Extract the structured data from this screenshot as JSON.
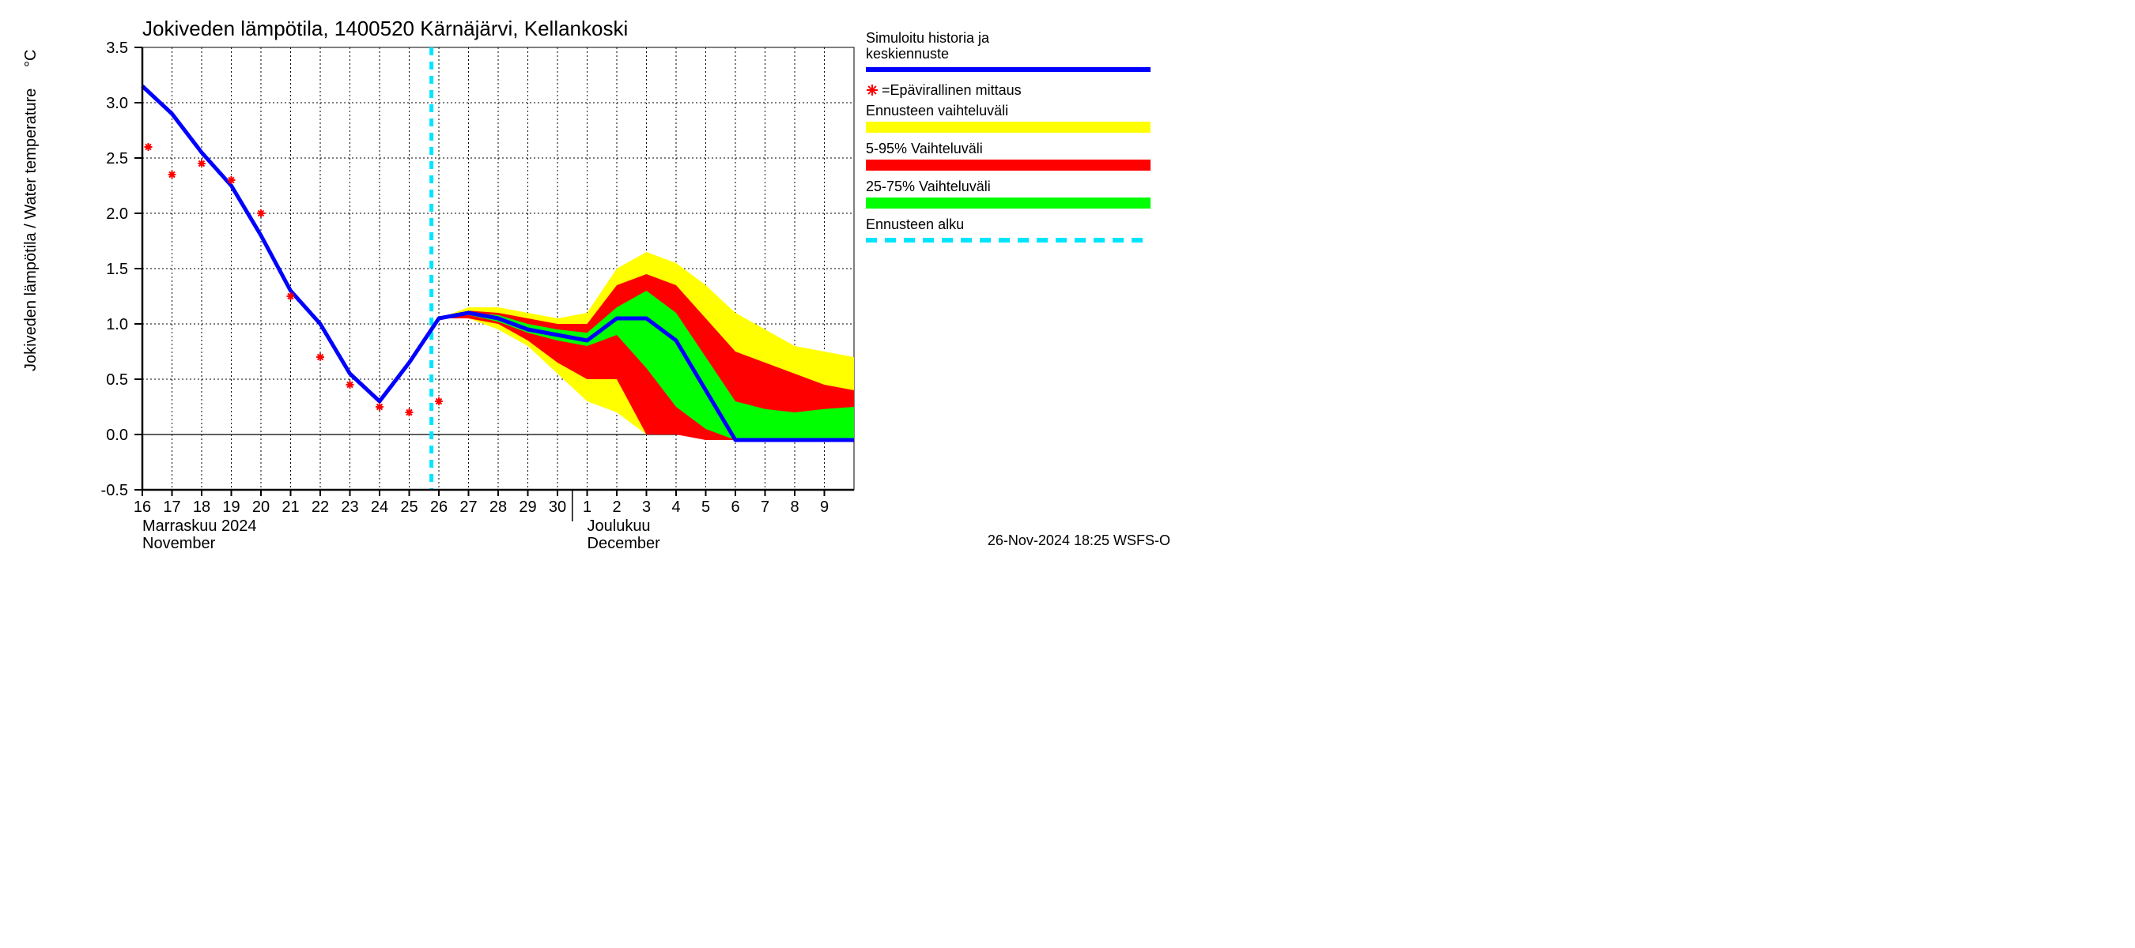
{
  "chart": {
    "type": "line-with-bands",
    "title": "Jokiveden lämpötila, 1400520 Kärnäjärvi, Kellankoski",
    "y_axis_label_fi": "Jokiveden lämpötila / Water temperature",
    "y_axis_unit": "°C",
    "footer": "26-Nov-2024 18:25 WSFS-O",
    "background_color": "#ffffff",
    "grid_color": "#000000",
    "grid_dash": "2,3",
    "axis_color": "#000000",
    "title_fontsize": 26,
    "label_fontsize": 20,
    "tick_fontsize": 20,
    "x": {
      "ticks": [
        "16",
        "17",
        "18",
        "19",
        "20",
        "21",
        "22",
        "23",
        "24",
        "25",
        "26",
        "27",
        "28",
        "29",
        "30",
        "1",
        "2",
        "3",
        "4",
        "5",
        "6",
        "7",
        "8",
        "9"
      ],
      "month_group_1": {
        "line1": "Marraskuu 2024",
        "line2": "November",
        "start_idx": 0
      },
      "month_group_2": {
        "line1": "Joulukuu",
        "line2": "December",
        "start_idx": 15
      },
      "forecast_start_idx": 9.75,
      "month_boundary_idx": 14.5
    },
    "y": {
      "min": -0.5,
      "max": 3.5,
      "tick_step": 0.5,
      "ticks": [
        -0.5,
        0.0,
        0.5,
        1.0,
        1.5,
        2.0,
        2.5,
        3.0,
        3.5
      ]
    },
    "series": {
      "sim_line": {
        "color": "#0000ff",
        "width": 5,
        "x": [
          0,
          1,
          2,
          3,
          4,
          5,
          6,
          7,
          8,
          9,
          10,
          11,
          12,
          13,
          14,
          15,
          16,
          17,
          18,
          19,
          20,
          21,
          22,
          23,
          24
        ],
        "y": [
          3.15,
          2.9,
          2.55,
          2.25,
          1.8,
          1.3,
          1.0,
          0.55,
          0.3,
          0.65,
          1.05,
          1.1,
          1.05,
          0.95,
          0.9,
          0.85,
          1.05,
          1.05,
          0.85,
          0.4,
          -0.05,
          -0.05,
          -0.05,
          -0.05,
          -0.05
        ]
      },
      "measurements": {
        "color": "#ff0000",
        "marker": "asterisk",
        "size": 10,
        "x": [
          0.2,
          1.0,
          2.0,
          3.0,
          4.0,
          5.0,
          6.0,
          7.0,
          8.0,
          9.0,
          10.0
        ],
        "y": [
          2.6,
          2.35,
          2.45,
          2.3,
          2.0,
          1.25,
          0.7,
          0.45,
          0.25,
          0.2,
          0.3
        ]
      },
      "band_full": {
        "color": "#ffff00",
        "x": [
          10,
          11,
          12,
          13,
          14,
          15,
          16,
          17,
          18,
          19,
          20,
          21,
          22,
          23,
          24
        ],
        "hi": [
          1.05,
          1.15,
          1.15,
          1.1,
          1.05,
          1.1,
          1.5,
          1.65,
          1.55,
          1.35,
          1.1,
          0.95,
          0.8,
          0.75,
          0.7
        ],
        "lo": [
          1.05,
          1.05,
          0.95,
          0.8,
          0.55,
          0.3,
          0.2,
          0.0,
          0.0,
          0.0,
          -0.05,
          -0.05,
          -0.05,
          -0.05,
          -0.05
        ]
      },
      "band_90": {
        "color": "#ff0000",
        "x": [
          10,
          11,
          12,
          13,
          14,
          15,
          16,
          17,
          18,
          19,
          20,
          21,
          22,
          23,
          24
        ],
        "hi": [
          1.05,
          1.12,
          1.1,
          1.05,
          1.0,
          1.0,
          1.35,
          1.45,
          1.35,
          1.05,
          0.75,
          0.65,
          0.55,
          0.45,
          0.4
        ],
        "lo": [
          1.05,
          1.05,
          1.0,
          0.85,
          0.65,
          0.5,
          0.5,
          0.0,
          0.0,
          -0.05,
          -0.05,
          -0.05,
          -0.05,
          -0.05,
          -0.05
        ]
      },
      "band_50": {
        "color": "#00ff00",
        "x": [
          10,
          11,
          12,
          13,
          14,
          15,
          16,
          17,
          18,
          19,
          20,
          21,
          22,
          23,
          24
        ],
        "hi": [
          1.05,
          1.1,
          1.08,
          1.0,
          0.95,
          0.92,
          1.15,
          1.3,
          1.1,
          0.7,
          0.3,
          0.23,
          0.2,
          0.23,
          0.25
        ],
        "lo": [
          1.05,
          1.08,
          1.02,
          0.92,
          0.85,
          0.8,
          0.9,
          0.6,
          0.25,
          0.05,
          -0.05,
          -0.05,
          -0.05,
          -0.05,
          -0.05
        ]
      },
      "forecast_start_line": {
        "color": "#00e5ff",
        "width": 5,
        "dash": "10,8"
      }
    },
    "legend": {
      "items": [
        {
          "kind": "line",
          "color": "#0000ff",
          "label1": "Simuloitu historia ja",
          "label2": "keskiennuste"
        },
        {
          "kind": "marker",
          "color": "#ff0000",
          "label1": "=Epävirallinen mittaus"
        },
        {
          "kind": "swatch",
          "color": "#ffff00",
          "label1": "Ennusteen vaihteluväli"
        },
        {
          "kind": "swatch",
          "color": "#ff0000",
          "label1": "5-95% Vaihteluväli"
        },
        {
          "kind": "swatch",
          "color": "#00ff00",
          "label1": "25-75% Vaihteluväli"
        },
        {
          "kind": "dash",
          "color": "#00e5ff",
          "label1": "Ennusteen alku"
        }
      ]
    }
  }
}
